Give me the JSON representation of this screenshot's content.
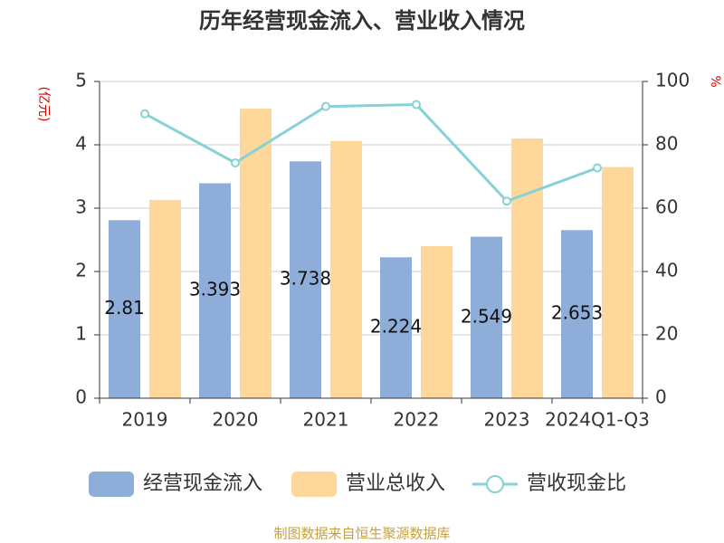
{
  "chart_data": {
    "type": "bar-line",
    "title": "历年经营现金流入、营业收入情况",
    "y_label": "(亿元)",
    "y2_label": "%",
    "source": "制图数据来自恒生聚源数据库",
    "categories": [
      "2019",
      "2020",
      "2021",
      "2022",
      "2023",
      "2024Q1-Q3"
    ],
    "series": [
      {
        "name": "经营现金流入",
        "type": "bar",
        "color": "#8eadd9",
        "values": [
          2.81,
          3.393,
          3.738,
          2.224,
          2.549,
          2.653
        ],
        "show_labels": true
      },
      {
        "name": "营业总收入",
        "type": "bar",
        "color": "#fdd89a",
        "values": [
          3.13,
          4.57,
          4.06,
          2.4,
          4.1,
          3.65
        ]
      },
      {
        "name": "营收现金比",
        "type": "line",
        "axis": "y2",
        "color": "#86d2d6",
        "values": [
          89.8,
          74.3,
          92.1,
          92.7,
          62.2,
          72.7
        ]
      }
    ],
    "ylim": [
      0,
      5
    ],
    "yticks": [
      0,
      1,
      2,
      3,
      4,
      5
    ],
    "y2lim": [
      0,
      100
    ],
    "y2ticks": [
      0,
      20,
      40,
      60,
      80,
      100
    ],
    "grid": true
  }
}
